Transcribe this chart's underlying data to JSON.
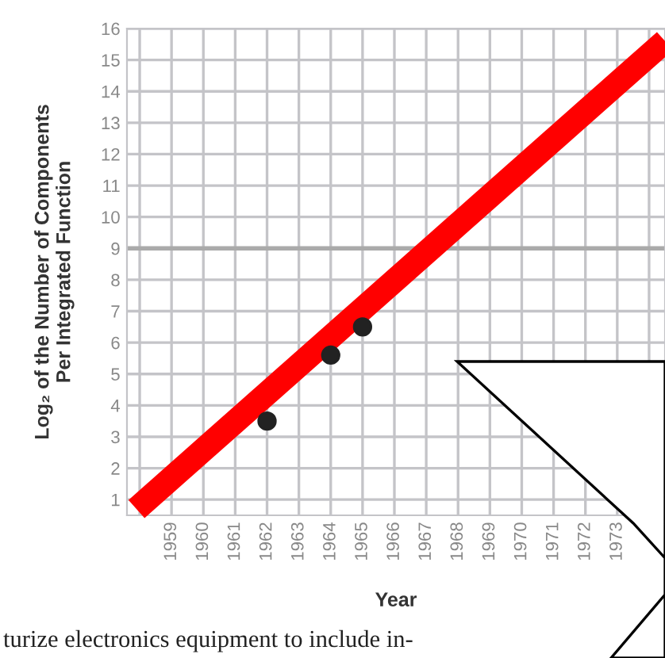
{
  "chart_data": {
    "type": "scatter",
    "xlabel": "Year",
    "ylabel": "Log₂ of the Number of Components\nPer Integrated Function",
    "series": [
      {
        "color": "#222222",
        "marker": "circle",
        "x": [
          1962,
          1964,
          1965
        ],
        "values": [
          3.5,
          5.6,
          6.5
        ]
      },
      {
        "type": "line",
        "color": "#ff0000",
        "marker": "none",
        "x": [
          1957.9,
          1974.5
        ],
        "values": [
          0.7,
          15.6
        ]
      }
    ],
    "xlim": [
      1957.6,
      1974.5
    ],
    "ylim": [
      0.5,
      16
    ],
    "xticks": [
      {
        "value": 1958,
        "label": null
      },
      1959,
      1960,
      1961,
      1962,
      1963,
      1964,
      1965,
      1966,
      1967,
      1968,
      1969,
      1970,
      1971,
      1972,
      1973,
      {
        "value": 1974,
        "label": null
      }
    ],
    "yticks": [
      1,
      2,
      3,
      4,
      5,
      6,
      7,
      8,
      9,
      10,
      11,
      12,
      13,
      14,
      15,
      16
    ],
    "ref_lines": [
      {
        "axis": "y",
        "value": 9,
        "color": "#aaaaaa"
      }
    ],
    "grid": true,
    "annotations": [
      "turize electronics equipment to include in-"
    ]
  }
}
